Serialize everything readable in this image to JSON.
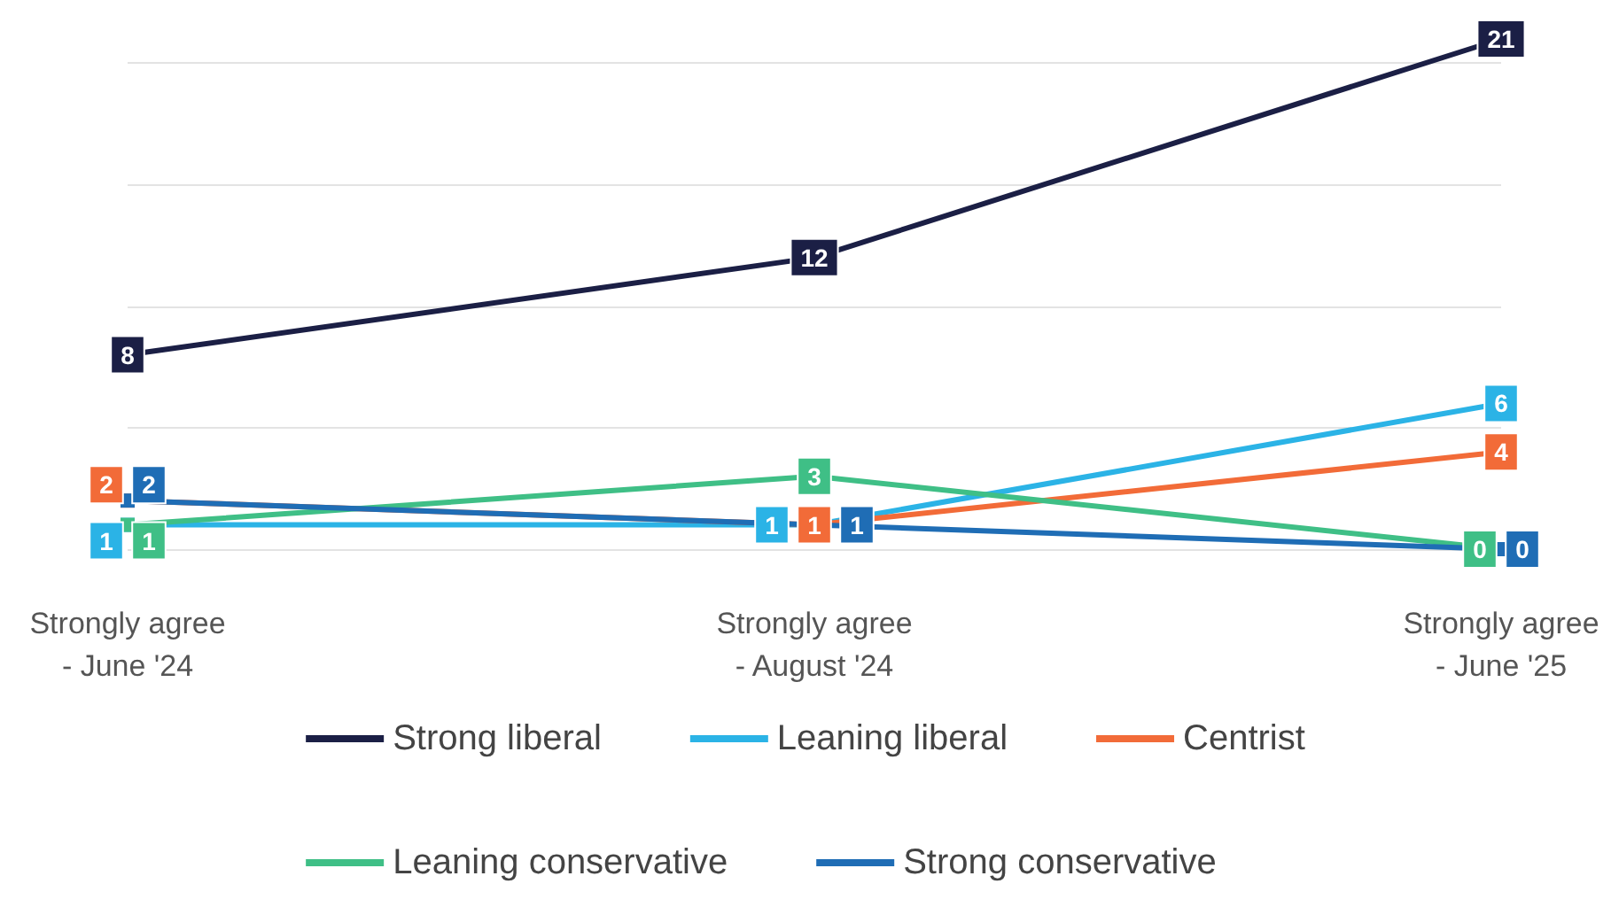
{
  "chart_data": {
    "type": "line",
    "categories": [
      "Strongly agree\n- June '24",
      "Strongly agree\n- August '24",
      "Strongly agree\n- June '25"
    ],
    "series": [
      {
        "name": "Strong liberal",
        "color": "#1b1f45",
        "values": [
          8,
          12,
          21
        ]
      },
      {
        "name": "Leaning liberal",
        "color": "#2bb3e6",
        "values": [
          1,
          1,
          6
        ]
      },
      {
        "name": "Centrist",
        "color": "#f26b38",
        "values": [
          2,
          1,
          4
        ]
      },
      {
        "name": "Leaning conservative",
        "color": "#3fbf86",
        "values": [
          1,
          3,
          0
        ]
      },
      {
        "name": "Strong conservative",
        "color": "#1f6db5",
        "values": [
          2,
          1,
          0
        ]
      }
    ],
    "yticks": [
      {
        "value": 0,
        "label": null
      },
      {
        "value": 5,
        "label": null
      },
      {
        "value": 10,
        "label": null
      },
      {
        "value": 15,
        "label": null
      },
      {
        "value": 20,
        "label": null
      }
    ],
    "tick_labels": "x",
    "grid": "y",
    "legend": "bottom",
    "marker": "square",
    "line_style": "solid",
    "data_labels": true
  }
}
